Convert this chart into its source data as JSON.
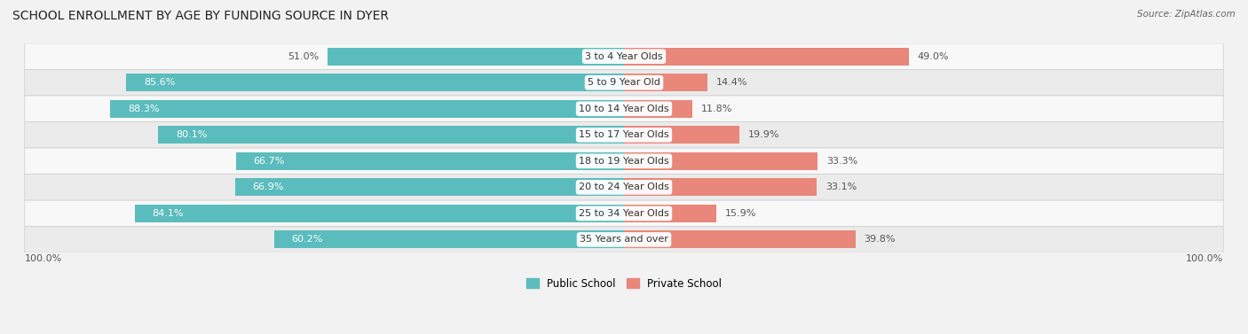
{
  "title": "SCHOOL ENROLLMENT BY AGE BY FUNDING SOURCE IN DYER",
  "source": "Source: ZipAtlas.com",
  "categories": [
    "3 to 4 Year Olds",
    "5 to 9 Year Old",
    "10 to 14 Year Olds",
    "15 to 17 Year Olds",
    "18 to 19 Year Olds",
    "20 to 24 Year Olds",
    "25 to 34 Year Olds",
    "35 Years and over"
  ],
  "public_values": [
    51.0,
    85.6,
    88.3,
    80.1,
    66.7,
    66.9,
    84.1,
    60.2
  ],
  "private_values": [
    49.0,
    14.4,
    11.8,
    19.9,
    33.3,
    33.1,
    15.9,
    39.8
  ],
  "public_color": "#5bbcbd",
  "private_color": "#e8877a",
  "public_label": "Public School",
  "private_label": "Private School",
  "bg_color": "#f2f2f2",
  "row_colors": [
    "#f8f8f8",
    "#ebebeb"
  ],
  "left_axis_label": "100.0%",
  "right_axis_label": "100.0%",
  "title_fontsize": 10,
  "label_fontsize": 8,
  "value_fontsize": 8,
  "source_fontsize": 7.5
}
